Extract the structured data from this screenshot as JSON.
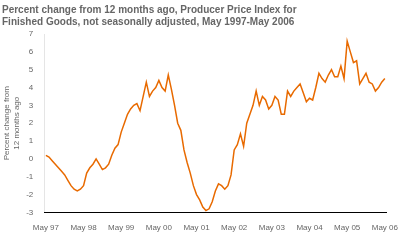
{
  "chart_data": {
    "type": "line",
    "title": "Percent change from 12 months ago, Producer Price Index for\nFinished Goods, not seasonally adjusted, May 1997-May 2006",
    "ylabel": "Percent change from\n12 months ago",
    "categories": [
      "May 97",
      null,
      null,
      null,
      null,
      null,
      null,
      null,
      null,
      null,
      null,
      null,
      "May 98",
      null,
      null,
      null,
      null,
      null,
      null,
      null,
      null,
      null,
      null,
      null,
      "May 99",
      null,
      null,
      null,
      null,
      null,
      null,
      null,
      null,
      null,
      null,
      null,
      "May 00",
      null,
      null,
      null,
      null,
      null,
      null,
      null,
      null,
      null,
      null,
      null,
      "May 01",
      null,
      null,
      null,
      null,
      null,
      null,
      null,
      null,
      null,
      null,
      null,
      "May 02",
      null,
      null,
      null,
      null,
      null,
      null,
      null,
      null,
      null,
      null,
      null,
      "May 03",
      null,
      null,
      null,
      null,
      null,
      null,
      null,
      null,
      null,
      null,
      null,
      "May 04",
      null,
      null,
      null,
      null,
      null,
      null,
      null,
      null,
      null,
      null,
      null,
      "May 05",
      null,
      null,
      null,
      null,
      null,
      null,
      null,
      null,
      null,
      null,
      null,
      "May 06"
    ],
    "values": [
      0.2,
      0.1,
      -0.1,
      -0.3,
      -0.5,
      -0.7,
      -0.9,
      -1.2,
      -1.5,
      -1.7,
      -1.8,
      -1.7,
      -1.5,
      -0.8,
      -0.5,
      -0.3,
      0.0,
      -0.3,
      -0.6,
      -0.5,
      -0.3,
      0.2,
      0.6,
      0.8,
      1.5,
      2.0,
      2.5,
      2.8,
      3.0,
      3.1,
      2.7,
      3.5,
      4.3,
      3.5,
      3.8,
      4.0,
      4.4,
      4.0,
      3.8,
      4.7,
      3.9,
      3.0,
      2.0,
      1.6,
      0.5,
      -0.2,
      -0.8,
      -1.5,
      -2.0,
      -2.3,
      -2.7,
      -2.9,
      -2.8,
      -2.4,
      -1.8,
      -1.4,
      -1.5,
      -1.7,
      -1.5,
      -0.9,
      0.5,
      0.8,
      1.4,
      0.7,
      2.0,
      2.5,
      3.0,
      3.8,
      3.0,
      3.5,
      3.3,
      2.8,
      3.0,
      3.5,
      3.3,
      2.5,
      2.5,
      3.8,
      3.5,
      3.8,
      4.0,
      4.2,
      3.7,
      3.2,
      3.4,
      3.3,
      4.0,
      4.8,
      4.5,
      4.3,
      4.7,
      5.0,
      4.6,
      4.6,
      5.2,
      4.5,
      6.6,
      6.0,
      5.4,
      5.5,
      4.2,
      4.5,
      4.8,
      4.3,
      4.2,
      3.8,
      4.0,
      4.3,
      4.5
    ],
    "color": "#E86A00",
    "ylim": [
      -3,
      7
    ],
    "yticks": [
      -3,
      -2,
      -1,
      0,
      1,
      2,
      3,
      4,
      5,
      6,
      7
    ],
    "grid": false
  }
}
